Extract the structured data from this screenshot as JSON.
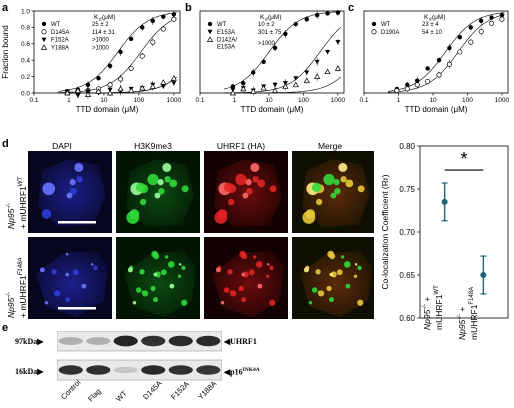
{
  "binding_curves": [
    {
      "letter": "a",
      "kd_header": "K",
      "kd_sub": "d",
      "kd_unit": "(μM)",
      "xlabel": "TTD domain (μM)",
      "ylabel": "Fraction bound",
      "xticks": [
        "0.1",
        "1",
        "10",
        "100",
        "1000"
      ],
      "yticks": [
        "0.0",
        "0.2",
        "0.4",
        "0.6",
        "0.8",
        "1.0"
      ],
      "legend": [
        {
          "name": "WT",
          "kd": "25 ± 2",
          "marker": "circle-filled"
        },
        {
          "name": "D145A",
          "kd": "114 ± 31",
          "marker": "circle-open"
        },
        {
          "name": "F152A",
          "kd": ">1000",
          "marker": "triangle-down-filled"
        },
        {
          "name": "Y188A",
          "kd": ">1000",
          "marker": "triangle-up-open"
        }
      ]
    },
    {
      "letter": "b",
      "kd_header": "K",
      "kd_sub": "d",
      "kd_unit": "(μM)",
      "xlabel": "TTD domain (μM)",
      "xticks": [
        "0.1",
        "1",
        "10",
        "100",
        "1000"
      ],
      "legend": [
        {
          "name": "WT",
          "kd": "10 ± 2",
          "marker": "circle-filled"
        },
        {
          "name": "E153A",
          "kd": "301 ± 75",
          "marker": "triangle-down-filled"
        },
        {
          "name": "D142A/ E153A",
          "kd": ">1000",
          "marker": "triangle-up-open"
        }
      ]
    },
    {
      "letter": "c",
      "kd_header": "K",
      "kd_sub": "d",
      "kd_unit": "(μM)",
      "xlabel": "TTD domain (μM)",
      "xticks": [
        "0.1",
        "1",
        "10",
        "100",
        "1000"
      ],
      "legend": [
        {
          "name": "WT",
          "kd": "23 ± 4",
          "marker": "circle-filled"
        },
        {
          "name": "D190A",
          "kd": "54 ± 10",
          "marker": "circle-open"
        }
      ]
    }
  ],
  "chart_data": [
    {
      "type": "scatter",
      "xlabel": "TTD domain (μM)",
      "ylabel": "Fraction bound",
      "x_scale": "log",
      "xlim": [
        0.1,
        1500
      ],
      "ylim": [
        0.0,
        1.0
      ],
      "series": [
        {
          "name": "WT",
          "x": [
            0.9,
            1.8,
            3.5,
            7,
            15,
            30,
            60,
            125,
            250,
            500,
            1000
          ],
          "y": [
            0.02,
            0.04,
            0.1,
            0.18,
            0.33,
            0.5,
            0.66,
            0.8,
            0.88,
            0.93,
            0.96
          ]
        },
        {
          "name": "D145A",
          "x": [
            0.9,
            1.8,
            3.5,
            7,
            15,
            30,
            60,
            125,
            250,
            500,
            1000
          ],
          "y": [
            0.0,
            0.02,
            0.03,
            0.05,
            0.1,
            0.17,
            0.3,
            0.45,
            0.62,
            0.78,
            0.9
          ]
        },
        {
          "name": "F152A",
          "x": [
            0.9,
            1.8,
            3.5,
            7,
            15,
            30,
            60,
            125,
            250,
            500,
            1000
          ],
          "y": [
            0.02,
            -0.03,
            0.02,
            0.0,
            0.04,
            0.02,
            0.05,
            0.06,
            0.1,
            0.08,
            0.12
          ]
        },
        {
          "name": "Y188A",
          "x": [
            0.9,
            1.8,
            3.5,
            7,
            15,
            30,
            60,
            125,
            250,
            500,
            1000
          ],
          "y": [
            0.0,
            0.03,
            -0.02,
            0.02,
            0.0,
            0.05,
            0.03,
            0.06,
            0.08,
            0.13,
            0.18
          ]
        }
      ]
    },
    {
      "type": "scatter",
      "xlabel": "TTD domain (μM)",
      "x_scale": "log",
      "xlim": [
        0.1,
        1500
      ],
      "ylim": [
        0.0,
        1.0
      ],
      "series": [
        {
          "name": "WT",
          "x": [
            0.9,
            1.8,
            3.5,
            7,
            15,
            30,
            60,
            125,
            250,
            500,
            1000
          ],
          "y": [
            0.08,
            0.12,
            0.25,
            0.38,
            0.55,
            0.72,
            0.84,
            0.9,
            0.95,
            0.97,
            0.98
          ]
        },
        {
          "name": "E153A",
          "x": [
            0.9,
            1.8,
            3.5,
            7,
            15,
            30,
            60,
            125,
            250,
            500,
            1000
          ],
          "y": [
            0.04,
            0.06,
            0.03,
            0.08,
            0.1,
            0.12,
            0.18,
            0.25,
            0.38,
            0.5,
            0.62
          ]
        },
        {
          "name": "D142A/ E153A",
          "x": [
            0.9,
            1.8,
            3.5,
            7,
            15,
            30,
            60,
            125,
            250,
            500,
            1000
          ],
          "y": [
            0.0,
            0.05,
            0.02,
            0.06,
            0.03,
            0.08,
            0.1,
            0.15,
            0.2,
            0.26,
            0.3
          ]
        }
      ]
    },
    {
      "type": "scatter",
      "xlabel": "TTD domain (μM)",
      "x_scale": "log",
      "xlim": [
        0.1,
        1500
      ],
      "ylim": [
        0.0,
        1.0
      ],
      "series": [
        {
          "name": "WT",
          "x": [
            0.9,
            1.8,
            3.5,
            7,
            15,
            30,
            60,
            125,
            250,
            500,
            1000
          ],
          "y": [
            0.05,
            0.1,
            0.15,
            0.3,
            0.4,
            0.55,
            0.68,
            0.8,
            0.88,
            0.92,
            0.95
          ]
        },
        {
          "name": "D190A",
          "x": [
            0.9,
            1.8,
            3.5,
            7,
            15,
            30,
            60,
            125,
            250,
            500,
            1000
          ],
          "y": [
            0.03,
            0.05,
            0.1,
            0.14,
            0.22,
            0.35,
            0.5,
            0.62,
            0.75,
            0.85,
            0.9
          ]
        }
      ]
    },
    {
      "type": "scatter",
      "ylabel": "Co-localization Coefficient (Rr)",
      "categories": [
        "Np95-/- + mUHRF1WT",
        "Np95-/- + mUHRF1F148A"
      ],
      "yticks": [
        "0.60",
        "0.65",
        "0.70",
        "0.75",
        "0.80"
      ],
      "ylim": [
        0.6,
        0.8
      ],
      "values": [
        0.735,
        0.65
      ],
      "errors": [
        0.022,
        0.022
      ],
      "annotation": "*"
    }
  ],
  "panel_d": {
    "letter": "d",
    "columns": [
      "DAPI",
      "H3K9me3",
      "UHRF1 (HA)",
      "Merge"
    ],
    "row1_label": {
      "line1": "Np95",
      "sup1": "-/-",
      "line2": "+ mUHRF1",
      "sup2": "WT"
    },
    "row2_label": {
      "line1": "Np95",
      "sup1": "-/-",
      "line2": "+ mUHRF1",
      "sup2": "F148A"
    },
    "colors": {
      "dapi": "#2c3cd8",
      "h3k9": "#31d83a",
      "uhrf1": "#e02424",
      "merge": "#e6c83a",
      "errbar": "#1f6275"
    }
  },
  "coloc": {
    "ylabel": "Co-localization Coefficient (Rr)",
    "yticks": [
      "0.60",
      "0.65",
      "0.70",
      "0.75",
      "0.80"
    ],
    "star": "*",
    "cat1": {
      "a": "Np95",
      "a_sup": "-/-",
      "b": " + ",
      "c": "mUHRF1",
      "c_sup": "WT"
    },
    "cat2": {
      "a": "Np95",
      "a_sup": "-/-",
      "b": " + ",
      "c": "mUHRF1",
      "c_sup": "F148A"
    }
  },
  "panel_e": {
    "letter": "e",
    "size_top": "97kDa",
    "size_bottom": "16kDa",
    "band_top": "UHRF1",
    "band_bottom_main": "p16",
    "band_bottom_sup": "INK4A",
    "lanes": [
      "Control",
      "Flag",
      "WT",
      "D145A",
      "F152A",
      "Y188A"
    ],
    "top_intensity": [
      0.35,
      0.35,
      0.95,
      0.9,
      0.92,
      0.92
    ],
    "bottom_intensity": [
      0.9,
      0.9,
      0.25,
      0.92,
      0.9,
      0.88
    ]
  }
}
